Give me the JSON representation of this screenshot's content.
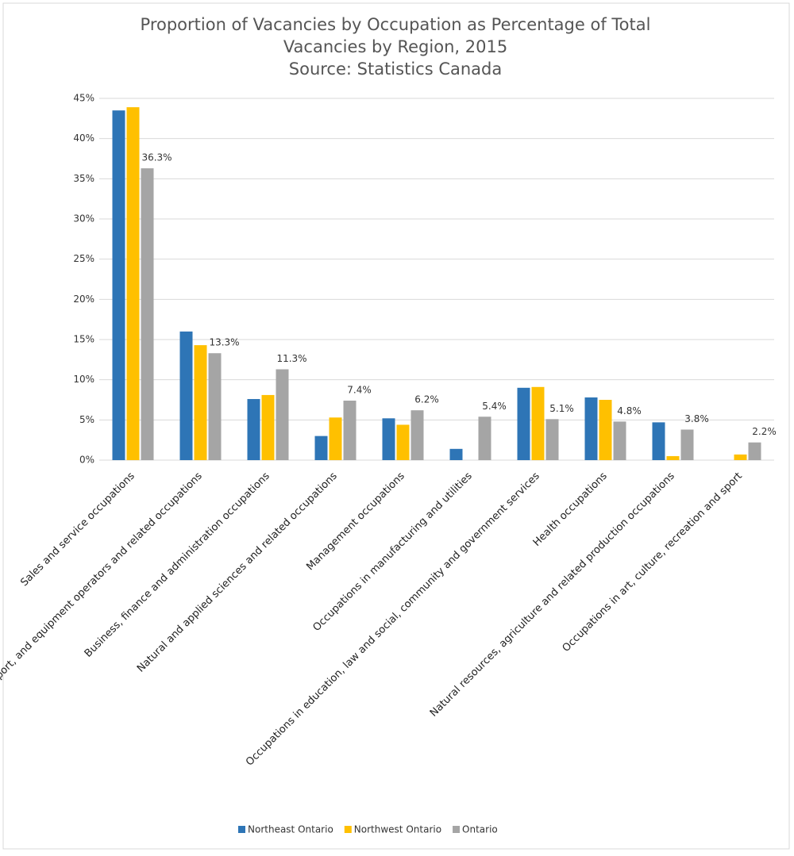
{
  "chart_data": {
    "type": "bar",
    "title": [
      "Proportion of Vacancies by Occupation as Percentage of Total",
      "Vacancies by Region, 2015",
      "Source: Statistics Canada"
    ],
    "categories": [
      "Sales and service occupations",
      "Trades, transport, and equipment operators and related occupations",
      "Business, finance and administration occupations",
      "Natural and applied sciences and related occupations",
      "Management occupations",
      "Occupations in manufacturing and utilities",
      "Occupations in education, law and social, community and government services",
      "Health occupations",
      "Natural resources, agriculture and related production occupations",
      "Occupations in art, culture, recreation and sport"
    ],
    "series": [
      {
        "name": "Northeast Ontario",
        "color": "#2e75b6",
        "values": [
          43.5,
          16,
          7.6,
          3,
          5.2,
          1.4,
          9,
          7.8,
          4.7,
          null
        ]
      },
      {
        "name": "Northwest Ontario",
        "color": "#ffc000",
        "values": [
          43.9,
          14.3,
          8.1,
          5.3,
          4.4,
          null,
          9.1,
          7.5,
          0.5,
          0.7
        ]
      },
      {
        "name": "Ontario",
        "color": "#a5a5a5",
        "values": [
          36.3,
          13.3,
          11.3,
          7.4,
          6.2,
          5.4,
          5.1,
          4.8,
          3.8,
          2.2
        ],
        "value_labels": [
          "36.3%",
          "13.3%",
          "11.3%",
          "7.4%",
          "6.2%",
          "5.4%",
          "5.1%",
          "4.8%",
          "3.8%",
          "2.2%"
        ]
      }
    ],
    "ylim": [
      0,
      45
    ],
    "yticks": [
      {
        "value": 0,
        "label": "0%"
      },
      {
        "value": 5,
        "label": "5%"
      },
      {
        "value": 10,
        "label": "10%"
      },
      {
        "value": 15,
        "label": "15%"
      },
      {
        "value": 20,
        "label": "20%"
      },
      {
        "value": 25,
        "label": "25%"
      },
      {
        "value": 30,
        "label": "30%"
      },
      {
        "value": 35,
        "label": "35%"
      },
      {
        "value": 40,
        "label": "40%"
      },
      {
        "value": 45,
        "label": "45%"
      }
    ],
    "grid": true,
    "legend": "bottom"
  }
}
